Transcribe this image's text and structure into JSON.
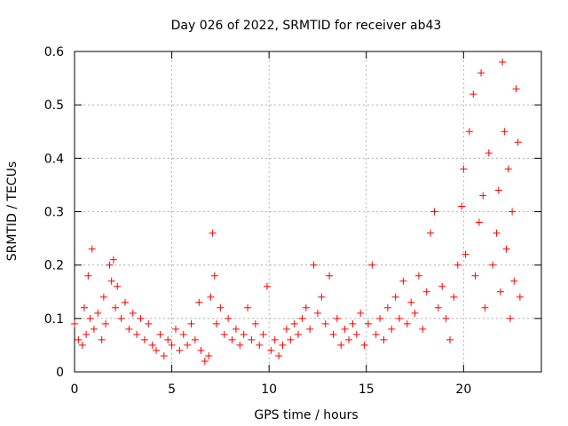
{
  "chart_data": {
    "type": "scatter",
    "title": "Day 026 of 2022, SRMTID for receiver ab43",
    "xlabel": "GPS time / hours",
    "ylabel": "SRMTID / TECUs",
    "xlim": [
      0,
      24
    ],
    "ylim": [
      0,
      0.6
    ],
    "grid": true,
    "x_ticks": [
      0,
      5,
      10,
      15,
      20
    ],
    "x_tick_labels": [
      "0",
      "5",
      "10",
      "15",
      "20"
    ],
    "y_ticks": [
      0,
      0.1,
      0.2,
      0.3,
      0.4,
      0.5,
      0.6
    ],
    "y_tick_labels": [
      "0",
      "0.1",
      "0.2",
      "0.3",
      "0.4",
      "0.5",
      "0.6"
    ],
    "series": [
      {
        "name": "SRMTID",
        "marker": "plus",
        "color": "#ff0000",
        "points": [
          [
            0.0,
            0.09
          ],
          [
            0.2,
            0.06
          ],
          [
            0.4,
            0.05
          ],
          [
            0.5,
            0.12
          ],
          [
            0.6,
            0.07
          ],
          [
            0.7,
            0.18
          ],
          [
            0.8,
            0.1
          ],
          [
            0.9,
            0.23
          ],
          [
            1.0,
            0.08
          ],
          [
            1.2,
            0.11
          ],
          [
            1.4,
            0.06
          ],
          [
            1.5,
            0.14
          ],
          [
            1.6,
            0.09
          ],
          [
            1.8,
            0.2
          ],
          [
            1.9,
            0.17
          ],
          [
            2.0,
            0.21
          ],
          [
            2.1,
            0.12
          ],
          [
            2.2,
            0.16
          ],
          [
            2.4,
            0.1
          ],
          [
            2.6,
            0.13
          ],
          [
            2.8,
            0.08
          ],
          [
            3.0,
            0.11
          ],
          [
            3.2,
            0.07
          ],
          [
            3.4,
            0.1
          ],
          [
            3.6,
            0.06
          ],
          [
            3.8,
            0.09
          ],
          [
            4.0,
            0.05
          ],
          [
            4.2,
            0.04
          ],
          [
            4.4,
            0.07
          ],
          [
            4.6,
            0.03
          ],
          [
            4.8,
            0.06
          ],
          [
            5.0,
            0.05
          ],
          [
            5.2,
            0.08
          ],
          [
            5.4,
            0.04
          ],
          [
            5.6,
            0.07
          ],
          [
            5.8,
            0.05
          ],
          [
            6.0,
            0.09
          ],
          [
            6.2,
            0.06
          ],
          [
            6.4,
            0.13
          ],
          [
            6.5,
            0.04
          ],
          [
            6.7,
            0.02
          ],
          [
            6.9,
            0.03
          ],
          [
            7.0,
            0.14
          ],
          [
            7.1,
            0.26
          ],
          [
            7.2,
            0.18
          ],
          [
            7.3,
            0.09
          ],
          [
            7.5,
            0.12
          ],
          [
            7.7,
            0.07
          ],
          [
            7.9,
            0.1
          ],
          [
            8.1,
            0.06
          ],
          [
            8.3,
            0.08
          ],
          [
            8.5,
            0.05
          ],
          [
            8.7,
            0.07
          ],
          [
            8.9,
            0.12
          ],
          [
            9.1,
            0.06
          ],
          [
            9.3,
            0.09
          ],
          [
            9.5,
            0.05
          ],
          [
            9.7,
            0.07
          ],
          [
            9.9,
            0.16
          ],
          [
            10.1,
            0.04
          ],
          [
            10.3,
            0.06
          ],
          [
            10.5,
            0.03
          ],
          [
            10.7,
            0.05
          ],
          [
            10.9,
            0.08
          ],
          [
            11.1,
            0.06
          ],
          [
            11.3,
            0.09
          ],
          [
            11.5,
            0.07
          ],
          [
            11.7,
            0.1
          ],
          [
            11.9,
            0.12
          ],
          [
            12.1,
            0.08
          ],
          [
            12.3,
            0.2
          ],
          [
            12.5,
            0.11
          ],
          [
            12.7,
            0.14
          ],
          [
            12.9,
            0.09
          ],
          [
            13.1,
            0.18
          ],
          [
            13.3,
            0.07
          ],
          [
            13.5,
            0.1
          ],
          [
            13.7,
            0.05
          ],
          [
            13.9,
            0.08
          ],
          [
            14.1,
            0.06
          ],
          [
            14.3,
            0.09
          ],
          [
            14.5,
            0.07
          ],
          [
            14.7,
            0.11
          ],
          [
            14.9,
            0.05
          ],
          [
            15.1,
            0.09
          ],
          [
            15.3,
            0.2
          ],
          [
            15.5,
            0.07
          ],
          [
            15.7,
            0.1
          ],
          [
            15.9,
            0.06
          ],
          [
            16.1,
            0.12
          ],
          [
            16.3,
            0.08
          ],
          [
            16.5,
            0.14
          ],
          [
            16.7,
            0.1
          ],
          [
            16.9,
            0.17
          ],
          [
            17.1,
            0.09
          ],
          [
            17.3,
            0.13
          ],
          [
            17.5,
            0.11
          ],
          [
            17.7,
            0.18
          ],
          [
            17.9,
            0.08
          ],
          [
            18.1,
            0.15
          ],
          [
            18.3,
            0.26
          ],
          [
            18.5,
            0.3
          ],
          [
            18.7,
            0.12
          ],
          [
            18.9,
            0.16
          ],
          [
            19.1,
            0.1
          ],
          [
            19.3,
            0.06
          ],
          [
            19.5,
            0.14
          ],
          [
            19.7,
            0.2
          ],
          [
            19.9,
            0.31
          ],
          [
            20.0,
            0.38
          ],
          [
            20.1,
            0.22
          ],
          [
            20.3,
            0.45
          ],
          [
            20.5,
            0.52
          ],
          [
            20.6,
            0.18
          ],
          [
            20.8,
            0.28
          ],
          [
            20.9,
            0.56
          ],
          [
            21.0,
            0.33
          ],
          [
            21.1,
            0.12
          ],
          [
            21.3,
            0.41
          ],
          [
            21.5,
            0.2
          ],
          [
            21.7,
            0.26
          ],
          [
            21.8,
            0.34
          ],
          [
            21.9,
            0.15
          ],
          [
            22.0,
            0.58
          ],
          [
            22.1,
            0.45
          ],
          [
            22.2,
            0.23
          ],
          [
            22.3,
            0.38
          ],
          [
            22.4,
            0.1
          ],
          [
            22.5,
            0.3
          ],
          [
            22.6,
            0.17
          ],
          [
            22.7,
            0.53
          ],
          [
            22.8,
            0.43
          ],
          [
            22.9,
            0.14
          ]
        ]
      }
    ]
  }
}
